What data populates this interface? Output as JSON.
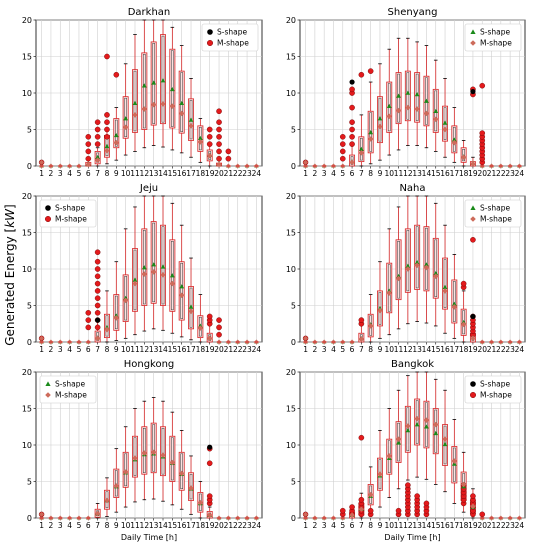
{
  "figure": {
    "ylabel": "Generated Energy [kW]",
    "ylabel_parts": [
      "Generated Energy [",
      "kW",
      "]"
    ],
    "xlabel": "Daily Time [h]",
    "xticks": [
      "1",
      "2",
      "3",
      "4",
      "5",
      "6",
      "7",
      "8",
      "9",
      "10",
      "11",
      "12",
      "13",
      "14",
      "15",
      "16",
      "17",
      "18",
      "19",
      "20",
      "21",
      "22",
      "23",
      "24"
    ],
    "yticks": [
      "0",
      "5",
      "10",
      "15",
      "20"
    ],
    "colors": {
      "box_edge": "#d62728",
      "box_fill": "#fbe1e1",
      "whisker": "#d62728",
      "cap": "#000000",
      "s_marker": "#1a8a1a",
      "m_marker": "#cd6b5b",
      "outlier_red": "#e31a1c",
      "outlier_black": "#000000"
    }
  },
  "chart_data": [
    {
      "type": "box",
      "title": "Darkhan",
      "legend": [
        "S-shape",
        "M-shape"
      ],
      "legend_position": "top-left",
      "ylim": [
        0,
        20
      ],
      "hours": [
        6,
        7,
        8,
        9,
        10,
        11,
        12,
        13,
        14,
        15,
        16,
        17,
        18,
        19,
        20
      ],
      "s_series": [
        {
          "name": "S-shape",
          "values": [
            0.3,
            1.2,
            2.7,
            4.2,
            6.5,
            8.6,
            11.0,
            11.4,
            11.7,
            10.5,
            8.6,
            6.3,
            3.8,
            1.5,
            0.3
          ]
        }
      ],
      "m_series": [
        {
          "name": "M-shape",
          "values": [
            0.2,
            0.8,
            2.1,
            3.2,
            5.3,
            7.0,
            7.8,
            8.4,
            8.5,
            8.2,
            7.2,
            5.5,
            3.3,
            1.4,
            0.2
          ]
        }
      ],
      "q1": [
        0,
        0.3,
        1.2,
        2.5,
        3.8,
        4.6,
        5.0,
        5.6,
        5.8,
        5.2,
        4.5,
        3.5,
        2.0,
        0.7,
        0
      ],
      "q3": [
        0.5,
        2.0,
        4.2,
        6.5,
        9.5,
        13.2,
        15.5,
        17.0,
        18.0,
        16.0,
        13.0,
        9.2,
        5.5,
        2.2,
        0.4
      ],
      "whislo": [
        0,
        0,
        0.3,
        0.8,
        1.5,
        2.0,
        2.5,
        2.8,
        2.6,
        2.2,
        1.8,
        1.2,
        0.5,
        0,
        0
      ],
      "whishi": [
        1.0,
        2.5,
        5.0,
        8.0,
        14.0,
        18.0,
        20.0,
        20.0,
        20.0,
        19.0,
        16.5,
        12.0,
        6.5,
        2.8,
        0.8
      ],
      "outliers": {
        "6": [
          1,
          2,
          3,
          4
        ],
        "7": [
          3,
          4,
          5,
          6
        ],
        "8": [
          4,
          5,
          6,
          7,
          15
        ],
        "9": [
          12.5
        ],
        "19": [
          3,
          4,
          5
        ],
        "20": [
          1,
          2,
          3,
          4,
          5,
          6,
          7.5
        ],
        "21": [
          1,
          2
        ]
      },
      "outlier_color": "red"
    },
    {
      "type": "box",
      "title": "Shenyang",
      "legend": [
        "S-shape",
        "M-shape"
      ],
      "legend_position": "top-right",
      "ylim": [
        0,
        20
      ],
      "hours": [
        6,
        7,
        8,
        9,
        10,
        11,
        12,
        13,
        14,
        15,
        16,
        17,
        18,
        19
      ],
      "s_series": [
        {
          "name": "S-shape",
          "values": [
            0.6,
            2.3,
            4.6,
            6.5,
            8.2,
            9.6,
            10.0,
            9.8,
            8.9,
            7.5,
            5.9,
            3.6,
            1.3,
            0.4
          ]
        }
      ],
      "m_series": [
        {
          "name": "M-shape",
          "values": [
            0.5,
            1.8,
            3.7,
            5.4,
            6.8,
            7.6,
            8.0,
            7.8,
            7.2,
            6.4,
            5.0,
            3.2,
            1.2,
            0.3
          ]
        }
      ],
      "q1": [
        0,
        0.6,
        1.8,
        3.2,
        4.6,
        5.8,
        6.2,
        6.0,
        5.5,
        4.6,
        3.4,
        1.8,
        0.5,
        0
      ],
      "q3": [
        1.5,
        4.0,
        7.5,
        9.5,
        11.5,
        12.8,
        13.0,
        12.8,
        12.3,
        10.5,
        8.2,
        5.5,
        2.5,
        0.6
      ],
      "whislo": [
        0,
        0,
        0.3,
        0.8,
        1.5,
        2.2,
        2.8,
        2.8,
        2.5,
        2.0,
        1.2,
        0.5,
        0,
        0
      ],
      "whishi": [
        3.0,
        7.0,
        11.5,
        14.0,
        16.0,
        17.5,
        17.5,
        17.0,
        16.5,
        14.5,
        12.0,
        8.0,
        3.5,
        1.2
      ],
      "outliers": {
        "5": [
          1,
          2,
          3,
          4
        ],
        "6": [
          3,
          4,
          5,
          6,
          8,
          10,
          10.5
        ],
        "7": [
          12.5
        ],
        "8": [
          13
        ],
        "19": [
          9.8,
          10.5
        ],
        "20": [
          0.5,
          1,
          1.5,
          2,
          2.5,
          3,
          3.5,
          4,
          4.5,
          11
        ]
      },
      "outlier_color": "red",
      "outliers_black": {
        "6": [
          11.5
        ],
        "19": [
          10.2
        ]
      }
    },
    {
      "type": "box",
      "title": "Jeju",
      "legend": [
        "S-shape",
        "M-shape"
      ],
      "legend_position": "top-left",
      "ylim": [
        0,
        20
      ],
      "hours": [
        7,
        8,
        9,
        10,
        11,
        12,
        13,
        14,
        15,
        16,
        17,
        18,
        19
      ],
      "s_series": [
        {
          "name": "S-shape",
          "values": [
            0.6,
            2.0,
            3.6,
            6.0,
            8.5,
            10.2,
            10.6,
            10.3,
            9.1,
            7.6,
            4.8,
            2.2,
            0.6
          ]
        }
      ],
      "m_series": [
        {
          "name": "M-shape",
          "values": [
            0.5,
            1.7,
            3.3,
            5.7,
            8.0,
            9.3,
            9.6,
            9.2,
            8.0,
            6.4,
            4.2,
            1.9,
            0.5
          ]
        }
      ],
      "q1": [
        0,
        0.6,
        1.6,
        2.8,
        4.2,
        5.0,
        5.3,
        5.0,
        4.2,
        3.0,
        1.8,
        0.6,
        0
      ],
      "q3": [
        1.5,
        3.8,
        6.5,
        9.2,
        12.8,
        15.5,
        16.5,
        16.0,
        14.0,
        11.0,
        7.6,
        3.6,
        1.2
      ],
      "whislo": [
        0,
        0,
        0.2,
        0.5,
        1.0,
        1.5,
        1.8,
        1.6,
        1.2,
        0.7,
        0.3,
        0,
        0
      ],
      "whishi": [
        3.0,
        7.0,
        11.0,
        15.5,
        18.5,
        20.0,
        20.0,
        20.0,
        19.0,
        16.0,
        11.5,
        6.5,
        2.5
      ],
      "outliers": {
        "6": [
          2,
          3,
          4
        ],
        "7": [
          2,
          3,
          4,
          5,
          6,
          7,
          8,
          9,
          10,
          11,
          12.3
        ],
        "19": [
          2.5,
          3,
          3.5
        ],
        "20": [
          1,
          2,
          3
        ]
      },
      "outlier_color": "red",
      "outliers_black": {
        "7": [
          3
        ]
      }
    },
    {
      "type": "box",
      "title": "Naha",
      "legend": [
        "S-shape",
        "M-shape"
      ],
      "legend_position": "top-right",
      "ylim": [
        0,
        20
      ],
      "hours": [
        7,
        8,
        9,
        10,
        11,
        12,
        13,
        14,
        15,
        16,
        17,
        18,
        19
      ],
      "s_series": [
        {
          "name": "S-shape",
          "values": [
            0.5,
            2.4,
            4.6,
            7.0,
            9.0,
            10.4,
            10.9,
            10.6,
            9.4,
            7.5,
            5.2,
            2.7,
            0.6
          ]
        }
      ],
      "m_series": [
        {
          "name": "M-shape",
          "values": [
            0.4,
            2.2,
            4.3,
            6.7,
            8.7,
            10.0,
            10.5,
            10.2,
            9.0,
            7.0,
            4.8,
            2.4,
            0.5
          ]
        }
      ],
      "q1": [
        0,
        0.7,
        2.2,
        4.0,
        5.8,
        6.8,
        7.2,
        7.0,
        6.0,
        4.5,
        2.6,
        0.9,
        0
      ],
      "q3": [
        1.2,
        3.8,
        7.0,
        10.8,
        14.0,
        15.5,
        16.0,
        15.8,
        14.2,
        11.5,
        8.5,
        4.5,
        1.2
      ],
      "whislo": [
        0,
        0,
        0.5,
        1.0,
        1.8,
        2.5,
        2.8,
        2.6,
        2.2,
        1.2,
        0.5,
        0,
        0
      ],
      "whishi": [
        2.5,
        6.5,
        11.0,
        15.5,
        18.5,
        20.0,
        20.0,
        20.0,
        19.0,
        16.0,
        12.0,
        7.0,
        2.5
      ],
      "outliers": {
        "7": [
          2.5,
          3
        ],
        "18": [
          7.5,
          8
        ],
        "19": [
          1,
          1.5,
          2,
          2.5,
          3,
          3.5,
          14
        ]
      },
      "outlier_color": "red",
      "outliers_black": {
        "19": [
          3.5
        ]
      }
    },
    {
      "type": "box",
      "title": "Hongkong",
      "legend": [
        "S-shape",
        "M-shape"
      ],
      "legend_position": "top-left",
      "ylim": [
        0,
        20
      ],
      "hours": [
        7,
        8,
        9,
        10,
        11,
        12,
        13,
        14,
        15,
        16,
        17,
        18,
        19
      ],
      "s_series": [
        {
          "name": "S-shape",
          "values": [
            0.6,
            2.4,
            4.3,
            6.2,
            8.0,
            8.7,
            8.8,
            8.4,
            7.5,
            6.0,
            4.0,
            2.0,
            0.4
          ]
        }
      ],
      "m_series": [
        {
          "name": "M-shape",
          "values": [
            0.6,
            2.4,
            4.4,
            6.3,
            8.2,
            8.9,
            9.0,
            8.6,
            7.6,
            6.1,
            4.1,
            2.1,
            0.4
          ]
        }
      ],
      "q1": [
        0.1,
        1.2,
        2.8,
        4.2,
        5.6,
        6.0,
        6.2,
        5.8,
        5.0,
        3.8,
        2.4,
        0.8,
        0
      ],
      "q3": [
        1.2,
        3.8,
        6.7,
        9.0,
        11.2,
        12.5,
        13.0,
        12.5,
        11.2,
        9.0,
        6.2,
        3.5,
        0.9
      ],
      "whislo": [
        0,
        0.2,
        0.8,
        1.5,
        2.2,
        2.5,
        2.6,
        2.3,
        1.8,
        1.2,
        0.5,
        0,
        0
      ],
      "whishi": [
        2.0,
        5.5,
        9.5,
        12.5,
        15.0,
        16.0,
        16.5,
        16.0,
        14.5,
        12.0,
        8.5,
        5.0,
        1.5
      ],
      "outliers": {
        "19": [
          2,
          2.5,
          3,
          7.5,
          9.5
        ]
      },
      "outlier_color": "red",
      "outliers_black": {
        "19": [
          9.7
        ]
      }
    },
    {
      "type": "box",
      "title": "Bangkok",
      "legend": [
        "S-shape",
        "M-shape"
      ],
      "legend_position": "top-right",
      "ylim": [
        0,
        20
      ],
      "hours": [
        6,
        7,
        8,
        9,
        10,
        11,
        12,
        13,
        14,
        15,
        16,
        17,
        18,
        19
      ],
      "s_series": [
        {
          "name": "S-shape",
          "values": [
            0.4,
            1.2,
            3.0,
            5.8,
            8.2,
            10.3,
            12.0,
            12.8,
            12.5,
            11.6,
            10.1,
            7.4,
            4.3,
            1.5
          ]
        }
      ],
      "m_series": [
        {
          "name": "M-shape",
          "values": [
            0.4,
            1.2,
            3.2,
            6.0,
            8.5,
            10.8,
            12.6,
            13.6,
            13.4,
            12.8,
            10.8,
            7.8,
            4.6,
            1.6
          ]
        }
      ],
      "q1": [
        0,
        0.4,
        1.8,
        3.8,
        6.0,
        7.6,
        9.0,
        10.0,
        9.6,
        8.8,
        7.2,
        4.8,
        2.4,
        0.6
      ],
      "q3": [
        0.8,
        2.0,
        4.6,
        8.2,
        10.8,
        13.2,
        15.3,
        16.3,
        16.0,
        15.0,
        12.8,
        9.8,
        6.3,
        2.4
      ],
      "whislo": [
        0,
        0,
        0.6,
        1.5,
        2.8,
        4.0,
        5.2,
        5.6,
        5.3,
        4.6,
        3.6,
        2.0,
        0.8,
        0
      ],
      "whishi": [
        1.6,
        3.4,
        7.0,
        12.0,
        15.0,
        17.5,
        19.5,
        20.0,
        20.0,
        19.0,
        17.5,
        13.5,
        9.0,
        4.0
      ],
      "outliers": {
        "5": [
          0.5,
          1
        ],
        "6": [
          0.5,
          1,
          1.5
        ],
        "7": [
          0.5,
          1,
          1.5,
          2,
          2.5,
          11
        ],
        "8": [
          0.5,
          1
        ],
        "11": [
          0.5,
          1
        ],
        "12": [
          0.5,
          1,
          1.5,
          2,
          2.5,
          3,
          3.5,
          4,
          4.5
        ],
        "13": [
          0.5,
          1,
          1.5,
          2,
          2.5,
          3
        ],
        "14": [
          0.5,
          1,
          1.5,
          2
        ],
        "18": [
          2,
          2.5,
          3,
          3.5,
          4,
          4.5
        ],
        "19": [
          0.5,
          1,
          1.5,
          2,
          2.5,
          3
        ],
        "20": [
          0.5
        ]
      },
      "outlier_color": "red"
    }
  ]
}
